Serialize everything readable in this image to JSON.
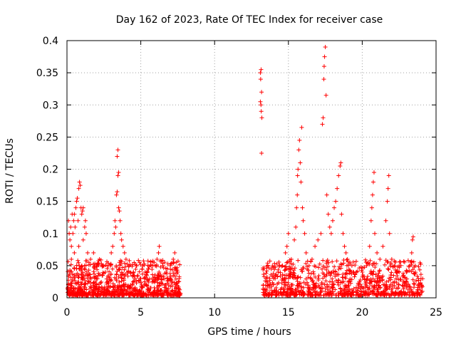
{
  "chart_data": {
    "type": "scatter",
    "title": "Day 162 of 2023, Rate Of TEC Index for receiver case",
    "xlabel": "GPS time / hours",
    "ylabel": "ROTI / TECUs",
    "xlim": [
      0,
      25
    ],
    "ylim": [
      0,
      0.4
    ],
    "x_ticks": [
      0,
      5,
      10,
      15,
      20,
      25
    ],
    "y_ticks": [
      0,
      0.05,
      0.1,
      0.15,
      0.2,
      0.25,
      0.3,
      0.35,
      0.4
    ],
    "grid": true,
    "marker": "plus",
    "color": "#ff0000",
    "series": [
      {
        "values_note_free": true,
        "points": [
          [
            0.1,
            0.12
          ],
          [
            0.15,
            0.1
          ],
          [
            0.2,
            0.09
          ],
          [
            0.25,
            0.11
          ],
          [
            0.3,
            0.08
          ],
          [
            0.35,
            0.13
          ],
          [
            0.4,
            0.1
          ],
          [
            0.45,
            0.12
          ],
          [
            0.5,
            0.13
          ],
          [
            0.55,
            0.11
          ],
          [
            0.6,
            0.14
          ],
          [
            0.65,
            0.15
          ],
          [
            0.7,
            0.155
          ],
          [
            0.75,
            0.12
          ],
          [
            0.8,
            0.17
          ],
          [
            0.85,
            0.18
          ],
          [
            0.9,
            0.175
          ],
          [
            0.95,
            0.14
          ],
          [
            1.0,
            0.13
          ],
          [
            1.05,
            0.135
          ],
          [
            1.1,
            0.14
          ],
          [
            1.2,
            0.11
          ],
          [
            1.25,
            0.12
          ],
          [
            1.3,
            0.1
          ],
          [
            0.3,
            0.06
          ],
          [
            0.5,
            0.07
          ],
          [
            0.8,
            0.08
          ],
          [
            1.1,
            0.09
          ],
          [
            1.4,
            0.07
          ],
          [
            1.6,
            0.06
          ],
          [
            1.8,
            0.07
          ],
          [
            2.0,
            0.05
          ],
          [
            2.2,
            0.06
          ],
          [
            2.4,
            0.05
          ],
          [
            2.6,
            0.04
          ],
          [
            2.8,
            0.05
          ],
          [
            3.0,
            0.07
          ],
          [
            3.1,
            0.08
          ],
          [
            3.2,
            0.1
          ],
          [
            3.25,
            0.12
          ],
          [
            3.3,
            0.11
          ],
          [
            3.35,
            0.16
          ],
          [
            3.4,
            0.165
          ],
          [
            3.45,
            0.19
          ],
          [
            3.5,
            0.195
          ],
          [
            3.4,
            0.22
          ],
          [
            3.45,
            0.23
          ],
          [
            3.5,
            0.14
          ],
          [
            3.55,
            0.135
          ],
          [
            3.6,
            0.12
          ],
          [
            3.65,
            0.1
          ],
          [
            3.7,
            0.09
          ],
          [
            3.8,
            0.08
          ],
          [
            3.9,
            0.07
          ],
          [
            4.0,
            0.06
          ],
          [
            4.2,
            0.05
          ],
          [
            4.5,
            0.04
          ],
          [
            4.8,
            0.035
          ],
          [
            5.0,
            0.03
          ],
          [
            5.3,
            0.04
          ],
          [
            5.5,
            0.045
          ],
          [
            5.7,
            0.05
          ],
          [
            5.9,
            0.055
          ],
          [
            6.1,
            0.06
          ],
          [
            6.2,
            0.07
          ],
          [
            6.25,
            0.08
          ],
          [
            6.5,
            0.05
          ],
          [
            6.8,
            0.045
          ],
          [
            7.0,
            0.05
          ],
          [
            7.2,
            0.06
          ],
          [
            7.3,
            0.07
          ],
          [
            7.4,
            0.055
          ],
          [
            7.5,
            0.04
          ],
          [
            7.6,
            0.03
          ],
          [
            13.1,
            0.35
          ],
          [
            13.15,
            0.355
          ],
          [
            13.12,
            0.34
          ],
          [
            13.18,
            0.32
          ],
          [
            13.1,
            0.305
          ],
          [
            13.14,
            0.3
          ],
          [
            13.16,
            0.29
          ],
          [
            13.2,
            0.28
          ],
          [
            13.18,
            0.225
          ],
          [
            13.3,
            0.02
          ],
          [
            13.6,
            0.025
          ],
          [
            14.0,
            0.03
          ],
          [
            14.3,
            0.04
          ],
          [
            14.6,
            0.05
          ],
          [
            14.8,
            0.07
          ],
          [
            14.9,
            0.08
          ],
          [
            15.0,
            0.1
          ],
          [
            15.2,
            0.06
          ],
          [
            15.4,
            0.09
          ],
          [
            15.5,
            0.11
          ],
          [
            15.55,
            0.14
          ],
          [
            15.6,
            0.16
          ],
          [
            15.62,
            0.19
          ],
          [
            15.65,
            0.2
          ],
          [
            15.7,
            0.23
          ],
          [
            15.75,
            0.245
          ],
          [
            15.8,
            0.21
          ],
          [
            15.85,
            0.18
          ],
          [
            15.9,
            0.265
          ],
          [
            15.95,
            0.14
          ],
          [
            16.0,
            0.12
          ],
          [
            16.1,
            0.1
          ],
          [
            16.2,
            0.07
          ],
          [
            16.4,
            0.05
          ],
          [
            16.6,
            0.06
          ],
          [
            16.8,
            0.08
          ],
          [
            17.0,
            0.09
          ],
          [
            17.2,
            0.1
          ],
          [
            17.3,
            0.27
          ],
          [
            17.35,
            0.28
          ],
          [
            17.4,
            0.34
          ],
          [
            17.42,
            0.36
          ],
          [
            17.45,
            0.375
          ],
          [
            17.5,
            0.39
          ],
          [
            17.55,
            0.315
          ],
          [
            17.6,
            0.16
          ],
          [
            17.7,
            0.13
          ],
          [
            17.8,
            0.11
          ],
          [
            17.9,
            0.1
          ],
          [
            18.0,
            0.12
          ],
          [
            18.1,
            0.14
          ],
          [
            18.2,
            0.15
          ],
          [
            18.3,
            0.17
          ],
          [
            18.4,
            0.19
          ],
          [
            18.5,
            0.205
          ],
          [
            18.55,
            0.21
          ],
          [
            18.6,
            0.13
          ],
          [
            18.7,
            0.1
          ],
          [
            18.8,
            0.08
          ],
          [
            18.9,
            0.07
          ],
          [
            19.0,
            0.06
          ],
          [
            19.3,
            0.05
          ],
          [
            19.6,
            0.04
          ],
          [
            20.0,
            0.04
          ],
          [
            20.3,
            0.05
          ],
          [
            20.5,
            0.08
          ],
          [
            20.6,
            0.12
          ],
          [
            20.65,
            0.14
          ],
          [
            20.7,
            0.16
          ],
          [
            20.75,
            0.18
          ],
          [
            20.8,
            0.195
          ],
          [
            20.85,
            0.1
          ],
          [
            21.0,
            0.07
          ],
          [
            21.2,
            0.06
          ],
          [
            21.4,
            0.08
          ],
          [
            21.6,
            0.12
          ],
          [
            21.7,
            0.15
          ],
          [
            21.75,
            0.17
          ],
          [
            21.8,
            0.19
          ],
          [
            21.85,
            0.1
          ],
          [
            22.0,
            0.06
          ],
          [
            22.2,
            0.05
          ],
          [
            22.5,
            0.04
          ],
          [
            22.8,
            0.035
          ],
          [
            23.0,
            0.04
          ],
          [
            23.2,
            0.05
          ],
          [
            23.35,
            0.07
          ],
          [
            23.4,
            0.09
          ],
          [
            23.45,
            0.095
          ],
          [
            23.6,
            0.05
          ],
          [
            23.8,
            0.03
          ],
          [
            24.0,
            0.02
          ]
        ]
      }
    ]
  }
}
